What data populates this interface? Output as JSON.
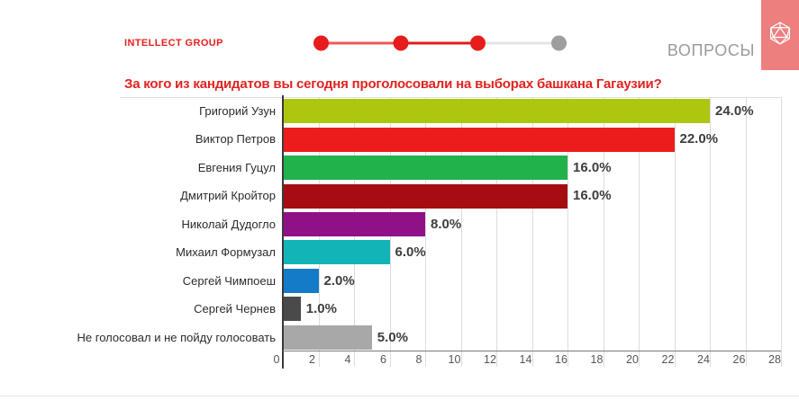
{
  "header": {
    "logo_text": "INTELLECT GROUP",
    "logo_color": "#e1221f",
    "nav_label": "ВОПРОСЫ",
    "nav_color": "#9b9b9b",
    "badge_color": "#ee7f7f",
    "badge_icon": "polyhedron-icon",
    "progress": {
      "dots": [
        {
          "color": "#e71c1c",
          "state": "done"
        },
        {
          "color": "#e71c1c",
          "state": "done"
        },
        {
          "color": "#e71c1c",
          "state": "current"
        },
        {
          "color": "#9e9e9e",
          "state": "upcoming"
        }
      ],
      "segments": [
        {
          "color": "#ea5a5a"
        },
        {
          "color": "#e01c1c"
        },
        {
          "color": "#e4e4e4"
        }
      ]
    }
  },
  "chart_data": {
    "type": "bar",
    "orientation": "horizontal",
    "title": "За кого из кандидатов вы сегодня проголосовали на выборах башкана Гагаузии?",
    "title_color": "#e1221f",
    "categories": [
      "Григорий Узун",
      "Виктор Петров",
      "Евгения Гуцул",
      "Дмитрий Кройтор",
      "Николай Дудогло",
      "Михаил Формузал",
      "Сергей Чимпоеш",
      "Сергей Чернев",
      "Не голосовал и не пойду голосовать"
    ],
    "values": [
      24,
      22,
      16,
      16,
      8,
      6,
      2,
      1,
      5
    ],
    "value_labels": [
      "24.0%",
      "22.0%",
      "16.0%",
      "16.0%",
      "8.0%",
      "6.0%",
      "2.0%",
      "1.0%",
      "5.0%"
    ],
    "bar_colors": [
      "#adc60f",
      "#ec1c1c",
      "#21b24c",
      "#a50d12",
      "#901087",
      "#12b4b8",
      "#137bc8",
      "#4a4a4a",
      "#a8a8a8"
    ],
    "xlabel": "",
    "ylabel": "",
    "xlim": [
      0,
      28
    ],
    "xticks": [
      0,
      2,
      4,
      6,
      8,
      10,
      12,
      14,
      16,
      18,
      20,
      22,
      24,
      26,
      28
    ],
    "grid": true,
    "legend": false
  }
}
